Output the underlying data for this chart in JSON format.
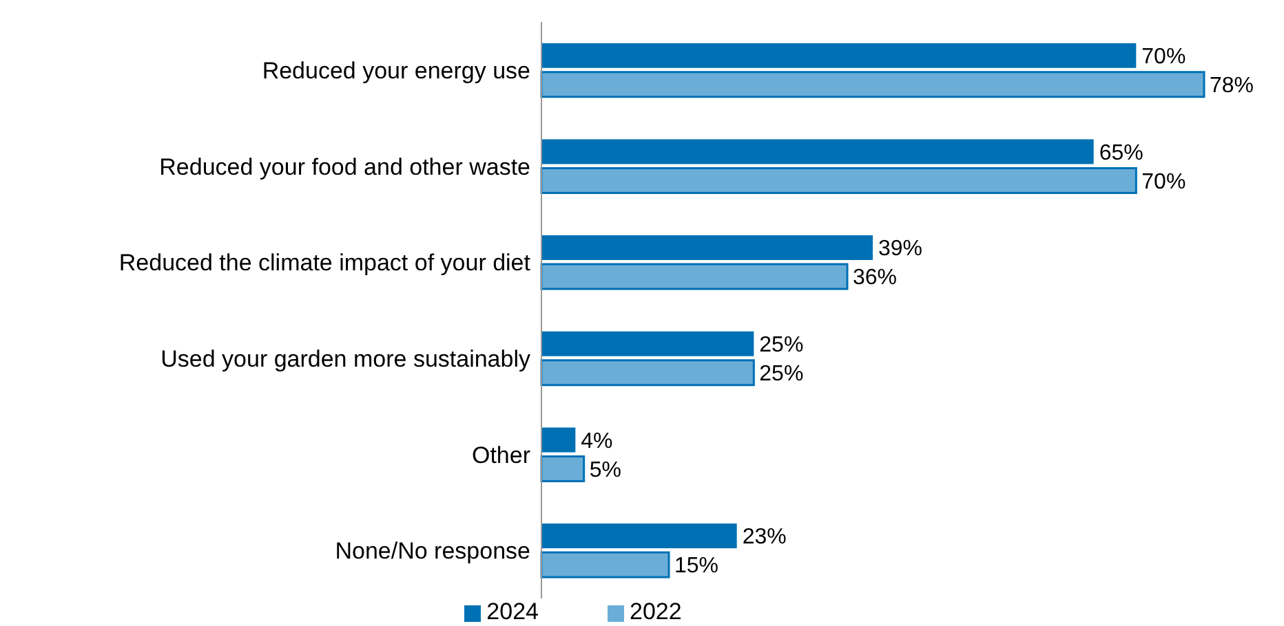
{
  "chart_data": {
    "type": "bar",
    "orientation": "horizontal",
    "categories": [
      "Reduced your energy use",
      "Reduced your food and other waste",
      "Reduced the climate impact of your diet",
      "Used your garden more sustainably",
      "Other",
      "None/No response"
    ],
    "series": [
      {
        "name": "2024",
        "color": "#0070b4",
        "values": [
          70,
          65,
          39,
          25,
          4,
          23
        ],
        "value_labels": [
          "70%",
          "65%",
          "39%",
          "25%",
          "4%",
          "23%"
        ]
      },
      {
        "name": "2022",
        "color": "#6aaed8",
        "values": [
          78,
          70,
          36,
          25,
          5,
          15
        ],
        "value_labels": [
          "78%",
          "70%",
          "36%",
          "25%",
          "5%",
          "15%"
        ]
      }
    ],
    "legend": "bottom",
    "grid": false
  }
}
